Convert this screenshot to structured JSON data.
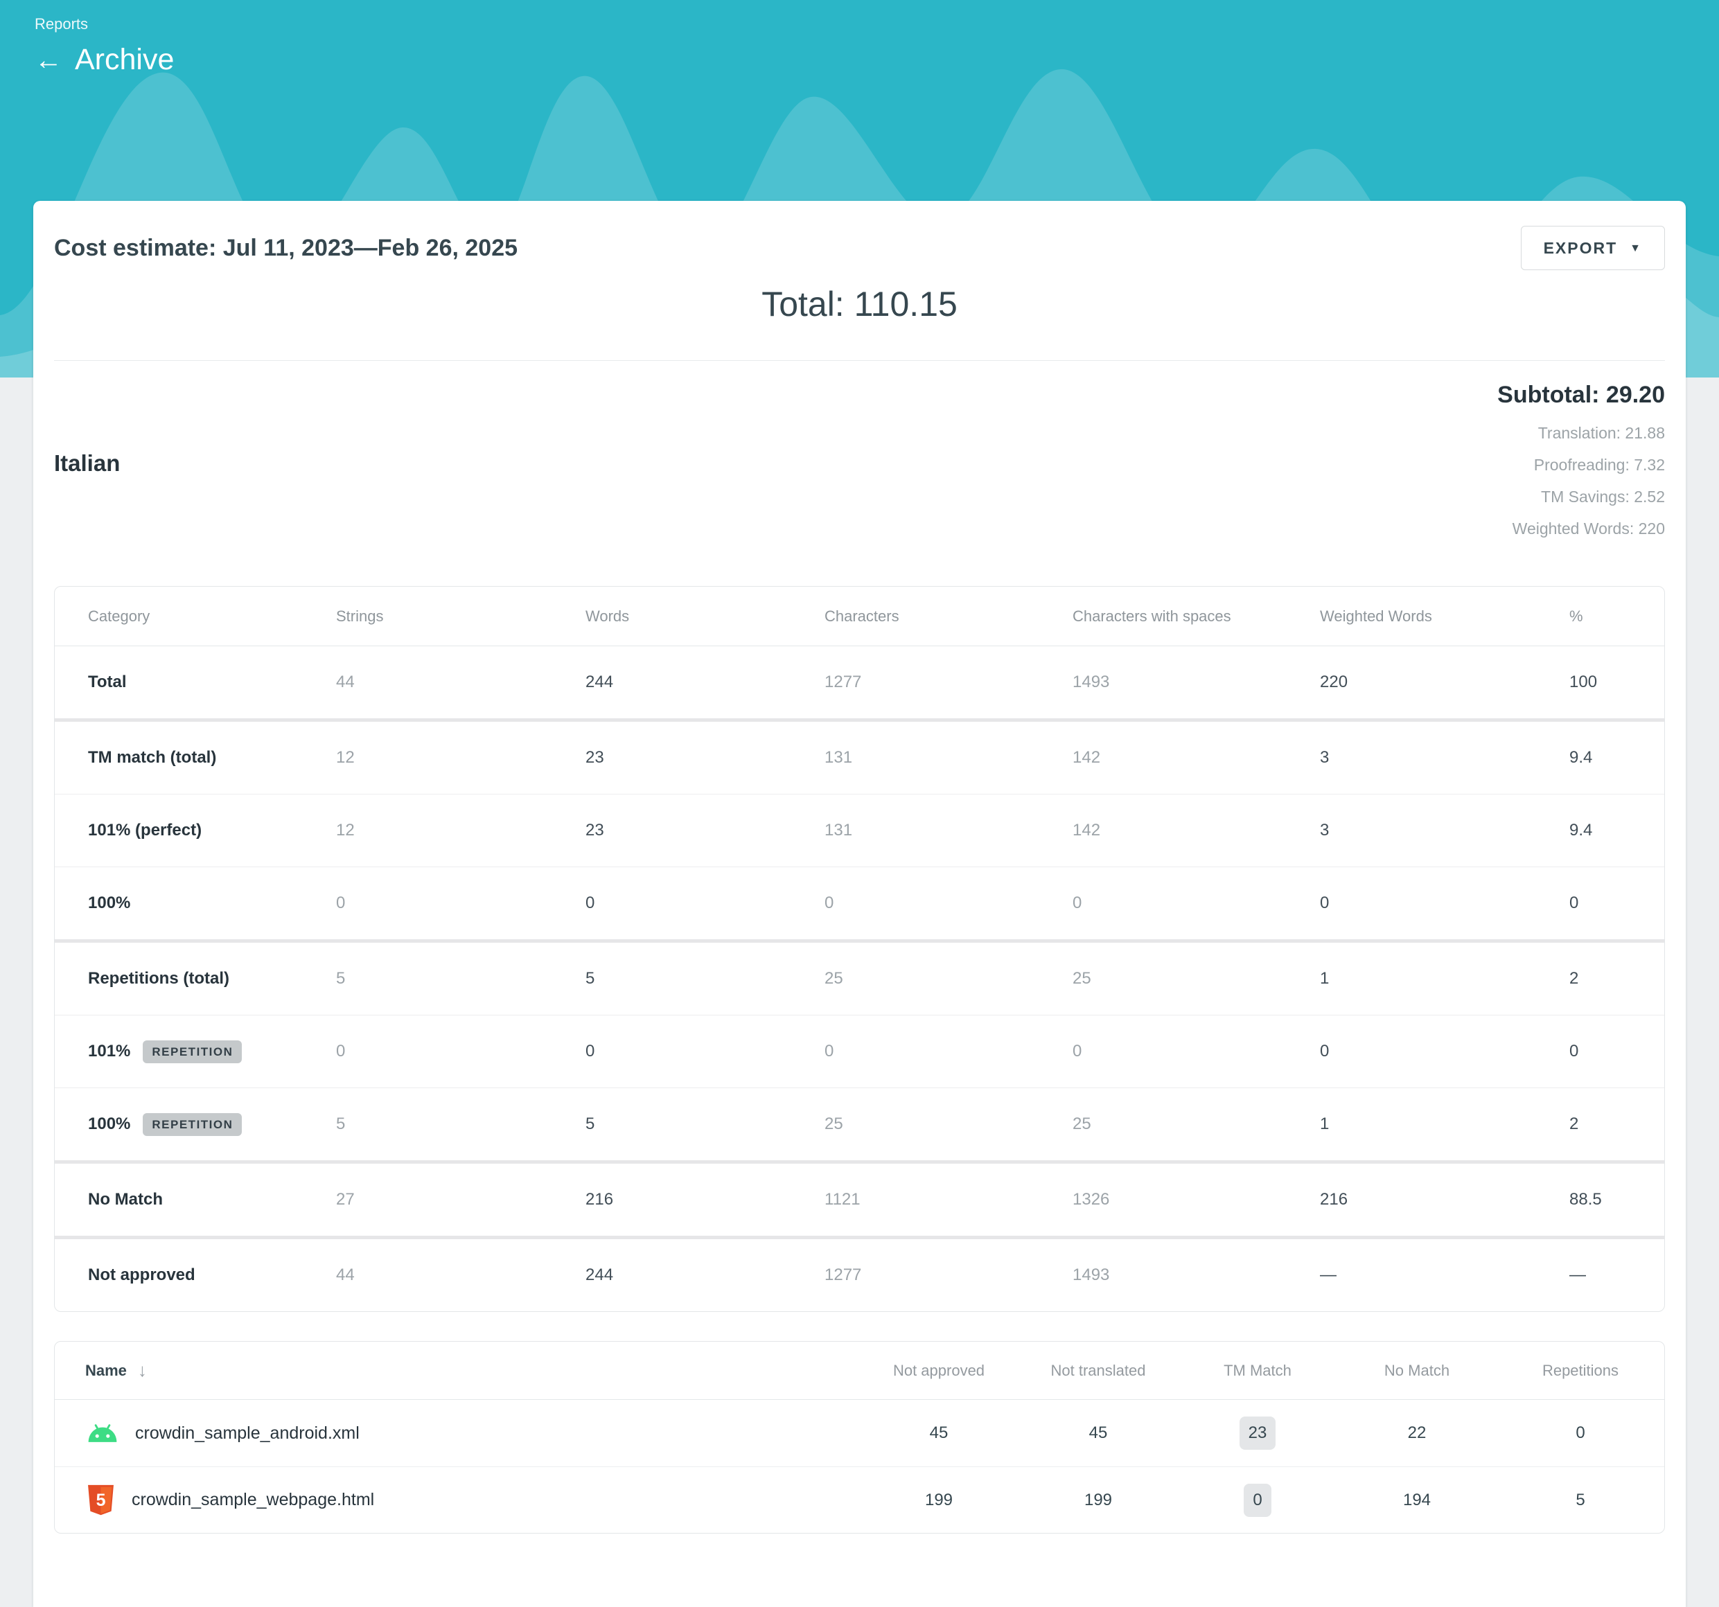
{
  "colors": {
    "teal": "#2BB6C7",
    "android_green": "#3DDC84",
    "html5_orange": "#E44D26",
    "badge_gray": "#C5C9CB"
  },
  "icons": {
    "back": "←",
    "caret": "▼",
    "sort": "↓"
  },
  "header": {
    "breadcrumb": "Reports",
    "title": "Archive"
  },
  "report": {
    "title": "Cost estimate: Jul 11, 2023—Feb 26, 2025",
    "export_label": "EXPORT",
    "total": "Total: 110.15"
  },
  "language_section": {
    "name": "Italian",
    "subtotal": "Subtotal: 29.20",
    "details": [
      "Translation: 21.88",
      "Proofreading: 7.32",
      "TM Savings: 2.52",
      "Weighted Words: 220"
    ]
  },
  "category_table": {
    "columns": [
      "Category",
      "Strings",
      "Words",
      "Characters",
      "Characters with spaces",
      "Weighted Words",
      "%"
    ],
    "rows": [
      {
        "category": "Total",
        "badge": "",
        "separator_above": "none",
        "values": [
          "44",
          "244",
          "1277",
          "1493",
          "220",
          "100"
        ]
      },
      {
        "category": "TM match (total)",
        "badge": "",
        "separator_above": "thick",
        "values": [
          "12",
          "23",
          "131",
          "142",
          "3",
          "9.4"
        ]
      },
      {
        "category": "101% (perfect)",
        "badge": "",
        "separator_above": "thin",
        "values": [
          "12",
          "23",
          "131",
          "142",
          "3",
          "9.4"
        ]
      },
      {
        "category": "100%",
        "badge": "",
        "separator_above": "thin",
        "values": [
          "0",
          "0",
          "0",
          "0",
          "0",
          "0"
        ]
      },
      {
        "category": "Repetitions (total)",
        "badge": "",
        "separator_above": "thick",
        "values": [
          "5",
          "5",
          "25",
          "25",
          "1",
          "2"
        ]
      },
      {
        "category": "101%",
        "badge": "REPETITION",
        "separator_above": "thin",
        "values": [
          "0",
          "0",
          "0",
          "0",
          "0",
          "0"
        ]
      },
      {
        "category": "100%",
        "badge": "REPETITION",
        "separator_above": "thin",
        "values": [
          "5",
          "5",
          "25",
          "25",
          "1",
          "2"
        ]
      },
      {
        "category": "No Match",
        "badge": "",
        "separator_above": "thick",
        "values": [
          "27",
          "216",
          "1121",
          "1326",
          "216",
          "88.5"
        ]
      },
      {
        "category": "Not approved",
        "badge": "",
        "separator_above": "thick",
        "values": [
          "44",
          "244",
          "1277",
          "1493",
          "—",
          "—"
        ]
      }
    ]
  },
  "files_table": {
    "columns": [
      "Name",
      "Not approved",
      "Not translated",
      "TM Match",
      "No Match",
      "Repetitions"
    ],
    "rows": [
      {
        "name": "crowdin_sample_android.xml",
        "icon": "android-icon",
        "values": [
          "45",
          "45",
          "23",
          "22",
          "0"
        ]
      },
      {
        "name": "crowdin_sample_webpage.html",
        "icon": "html5-icon",
        "values": [
          "199",
          "199",
          "0",
          "194",
          "5"
        ]
      }
    ]
  }
}
